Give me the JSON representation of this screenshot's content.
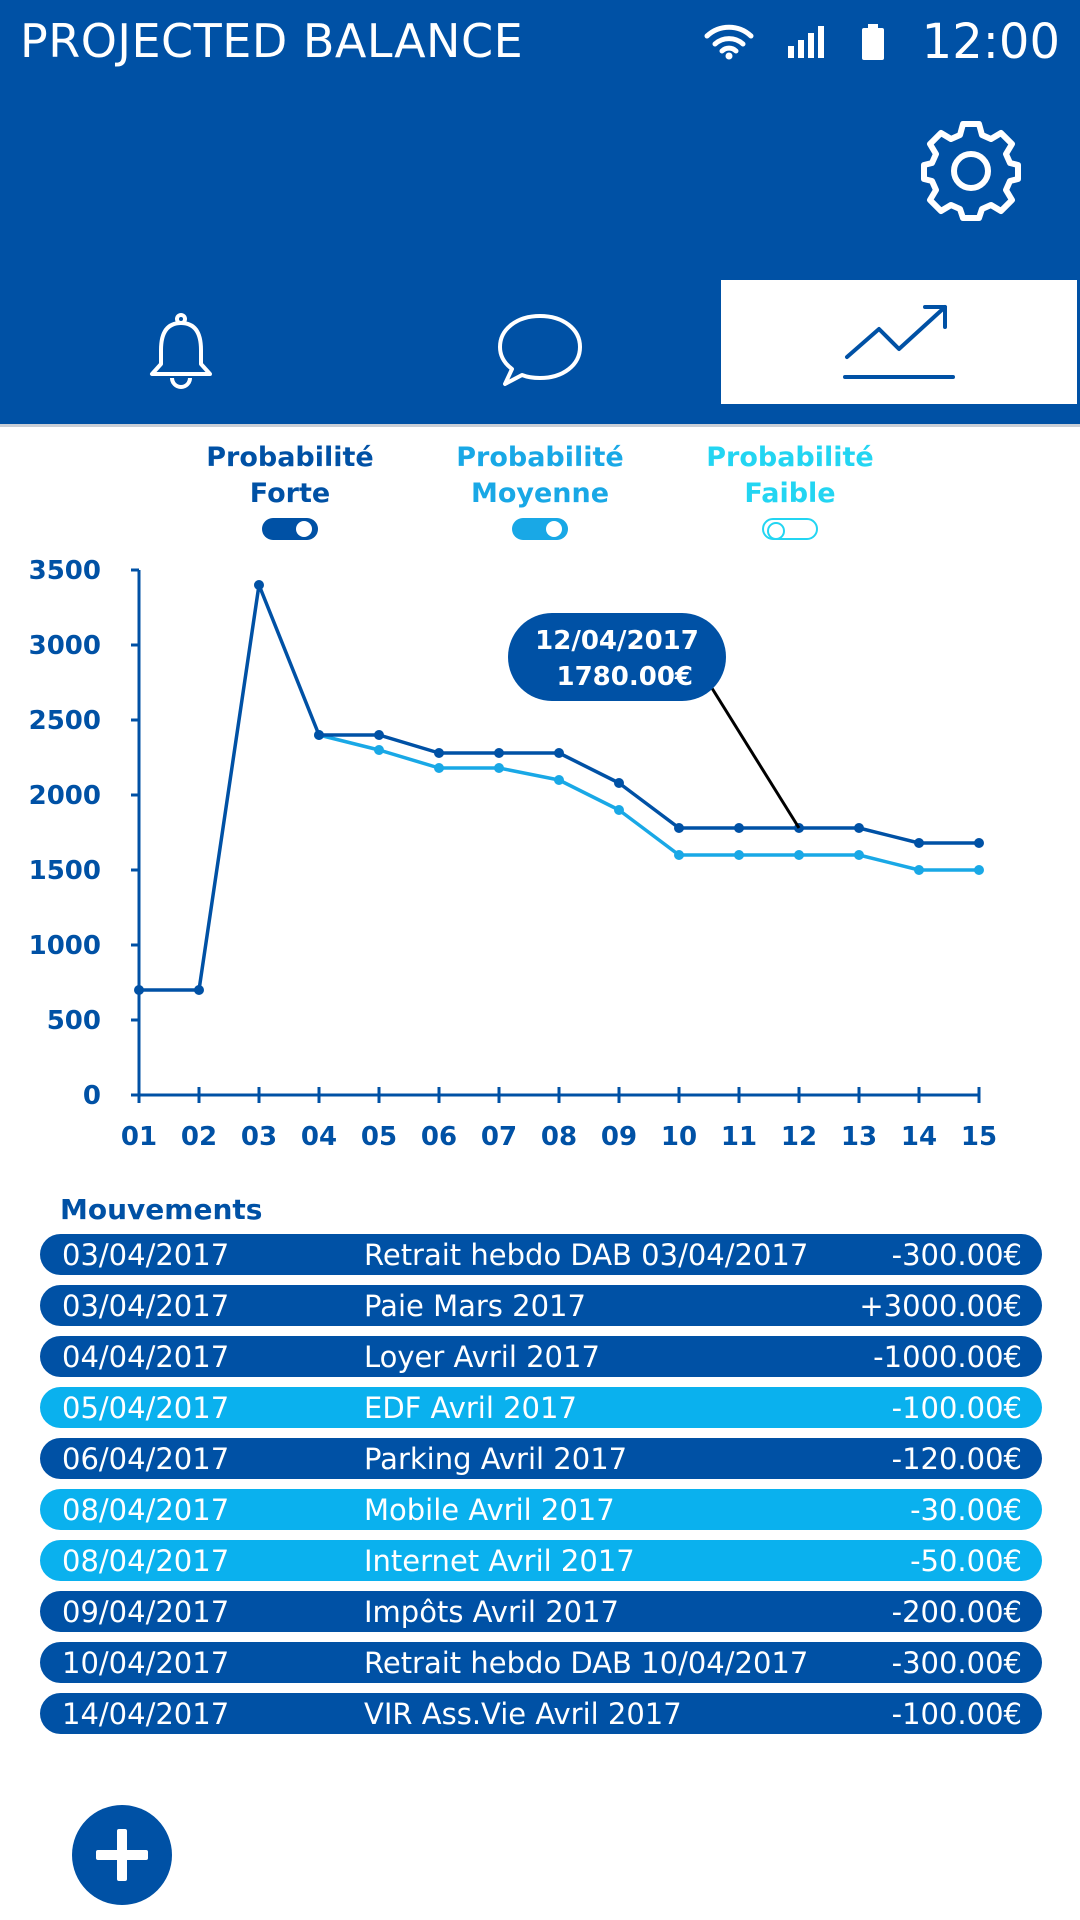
{
  "header": {
    "title": "PROJECTED BALANCE",
    "time": "12:00"
  },
  "icons": {
    "wifi": "wifi-icon",
    "signal": "signal-icon",
    "battery": "battery-icon",
    "settings": "gear-icon",
    "notifications": "bell-icon",
    "messages": "chat-bubble-icon",
    "balance": "trend-chart-icon",
    "add": "plus-icon"
  },
  "tabs": [
    {
      "name": "notifications",
      "active": false
    },
    {
      "name": "messages",
      "active": false
    },
    {
      "name": "balance",
      "active": true
    }
  ],
  "toggles": [
    {
      "label": "Probabilité\nForte",
      "on": true,
      "color": "#0051a5"
    },
    {
      "label": "Probabilité\nMoyenne",
      "on": true,
      "color": "#19a8e6"
    },
    {
      "label": "Probabilité\nFaible",
      "on": false,
      "color": "#23d5f2"
    }
  ],
  "chart_data": {
    "type": "line",
    "x": [
      "01",
      "02",
      "03",
      "04",
      "05",
      "06",
      "07",
      "08",
      "09",
      "10",
      "11",
      "12",
      "13",
      "14",
      "15"
    ],
    "yticks": [
      0,
      500,
      1000,
      1500,
      2000,
      2500,
      3000,
      3500
    ],
    "ylim": [
      0,
      3500
    ],
    "series": [
      {
        "values": [
          700,
          700,
          3400,
          2400,
          2400,
          2280,
          2280,
          2280,
          2080,
          1780,
          1780,
          1780,
          1780,
          1680,
          1680
        ],
        "color": "#0051a5"
      },
      {
        "values": [
          null,
          null,
          null,
          2400,
          2300,
          2180,
          2180,
          2100,
          1900,
          1600,
          1600,
          1600,
          1600,
          1500,
          1500
        ],
        "color": "#19a8e6"
      }
    ],
    "tooltip": {
      "date": "12/04/2017",
      "value": "1780.00€",
      "x_index": 11
    }
  },
  "movements": {
    "title": "Mouvements",
    "rows": [
      {
        "date": "03/04/2017",
        "label": "Retrait hebdo DAB 03/04/2017",
        "amount": "-300.00€",
        "color": "#0051a5"
      },
      {
        "date": "03/04/2017",
        "label": "Paie Mars 2017",
        "amount": "+3000.00€",
        "color": "#0051a5"
      },
      {
        "date": "04/04/2017",
        "label": "Loyer Avril 2017",
        "amount": "-1000.00€",
        "color": "#0051a5"
      },
      {
        "date": "05/04/2017",
        "label": "EDF Avril 2017",
        "amount": "-100.00€",
        "color": "#0ab1ee"
      },
      {
        "date": "06/04/2017",
        "label": "Parking Avril 2017",
        "amount": "-120.00€",
        "color": "#0051a5"
      },
      {
        "date": "08/04/2017",
        "label": "Mobile Avril 2017",
        "amount": "-30.00€",
        "color": "#0ab1ee"
      },
      {
        "date": "08/04/2017",
        "label": "Internet Avril 2017",
        "amount": "-50.00€",
        "color": "#0ab1ee"
      },
      {
        "date": "09/04/2017",
        "label": "Impôts Avril 2017",
        "amount": "-200.00€",
        "color": "#0051a5"
      },
      {
        "date": "10/04/2017",
        "label": "Retrait hebdo DAB 10/04/2017",
        "amount": "-300.00€",
        "color": "#0051a5"
      },
      {
        "date": "14/04/2017",
        "label": "VIR Ass.Vie Avril 2017",
        "amount": "-100.00€",
        "color": "#0051a5"
      }
    ]
  }
}
